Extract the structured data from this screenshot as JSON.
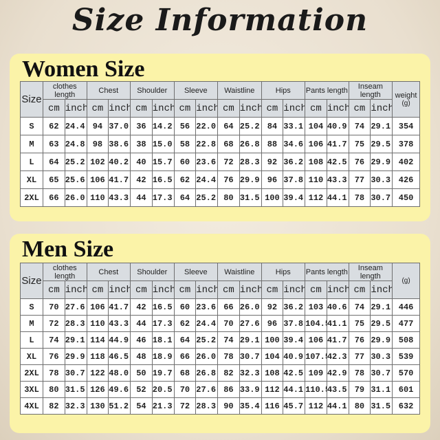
{
  "title": "Size Information",
  "columns": [
    "clothes length",
    "Chest",
    "Shoulder",
    "Sleeve",
    "Waistline",
    "Hips",
    "Pants length",
    "Inseam length"
  ],
  "units": {
    "cm": "cm",
    "inch": "inch"
  },
  "size_label": "Size",
  "colors": {
    "panel": "#fbf3a8",
    "header": "#d9dde1"
  },
  "women": {
    "heading": "Women Size",
    "weight_label": "weight",
    "weight_unit": "(g)",
    "rows": [
      [
        "S",
        "62",
        "24.4",
        "94",
        "37.0",
        "36",
        "14.2",
        "56",
        "22.0",
        "64",
        "25.2",
        "84",
        "33.1",
        "104",
        "40.9",
        "74",
        "29.1",
        "354"
      ],
      [
        "M",
        "63",
        "24.8",
        "98",
        "38.6",
        "38",
        "15.0",
        "58",
        "22.8",
        "68",
        "26.8",
        "88",
        "34.6",
        "106",
        "41.7",
        "75",
        "29.5",
        "378"
      ],
      [
        "L",
        "64",
        "25.2",
        "102",
        "40.2",
        "40",
        "15.7",
        "60",
        "23.6",
        "72",
        "28.3",
        "92",
        "36.2",
        "108",
        "42.5",
        "76",
        "29.9",
        "402"
      ],
      [
        "XL",
        "65",
        "25.6",
        "106",
        "41.7",
        "42",
        "16.5",
        "62",
        "24.4",
        "76",
        "29.9",
        "96",
        "37.8",
        "110",
        "43.3",
        "77",
        "30.3",
        "426"
      ],
      [
        "2XL",
        "66",
        "26.0",
        "110",
        "43.3",
        "44",
        "17.3",
        "64",
        "25.2",
        "80",
        "31.5",
        "100",
        "39.4",
        "112",
        "44.1",
        "78",
        "30.7",
        "450"
      ]
    ]
  },
  "men": {
    "heading": "Men Size",
    "weight_label": "",
    "weight_unit": "(g)",
    "rows": [
      [
        "S",
        "70",
        "27.6",
        "106",
        "41.7",
        "42",
        "16.5",
        "60",
        "23.6",
        "66",
        "26.0",
        "92",
        "36.2",
        "103",
        "40.6",
        "74",
        "29.1",
        "446"
      ],
      [
        "M",
        "72",
        "28.3",
        "110",
        "43.3",
        "44",
        "17.3",
        "62",
        "24.4",
        "70",
        "27.6",
        "96",
        "37.8",
        "104.5",
        "41.1",
        "75",
        "29.5",
        "477"
      ],
      [
        "L",
        "74",
        "29.1",
        "114",
        "44.9",
        "46",
        "18.1",
        "64",
        "25.2",
        "74",
        "29.1",
        "100",
        "39.4",
        "106",
        "41.7",
        "76",
        "29.9",
        "508"
      ],
      [
        "XL",
        "76",
        "29.9",
        "118",
        "46.5",
        "48",
        "18.9",
        "66",
        "26.0",
        "78",
        "30.7",
        "104",
        "40.9",
        "107.5",
        "42.3",
        "77",
        "30.3",
        "539"
      ],
      [
        "2XL",
        "78",
        "30.7",
        "122",
        "48.0",
        "50",
        "19.7",
        "68",
        "26.8",
        "82",
        "32.3",
        "108",
        "42.5",
        "109",
        "42.9",
        "78",
        "30.7",
        "570"
      ],
      [
        "3XL",
        "80",
        "31.5",
        "126",
        "49.6",
        "52",
        "20.5",
        "70",
        "27.6",
        "86",
        "33.9",
        "112",
        "44.1",
        "110.5",
        "43.5",
        "79",
        "31.1",
        "601"
      ],
      [
        "4XL",
        "82",
        "32.3",
        "130",
        "51.2",
        "54",
        "21.3",
        "72",
        "28.3",
        "90",
        "35.4",
        "116",
        "45.7",
        "112",
        "44.1",
        "80",
        "31.5",
        "632"
      ]
    ]
  }
}
